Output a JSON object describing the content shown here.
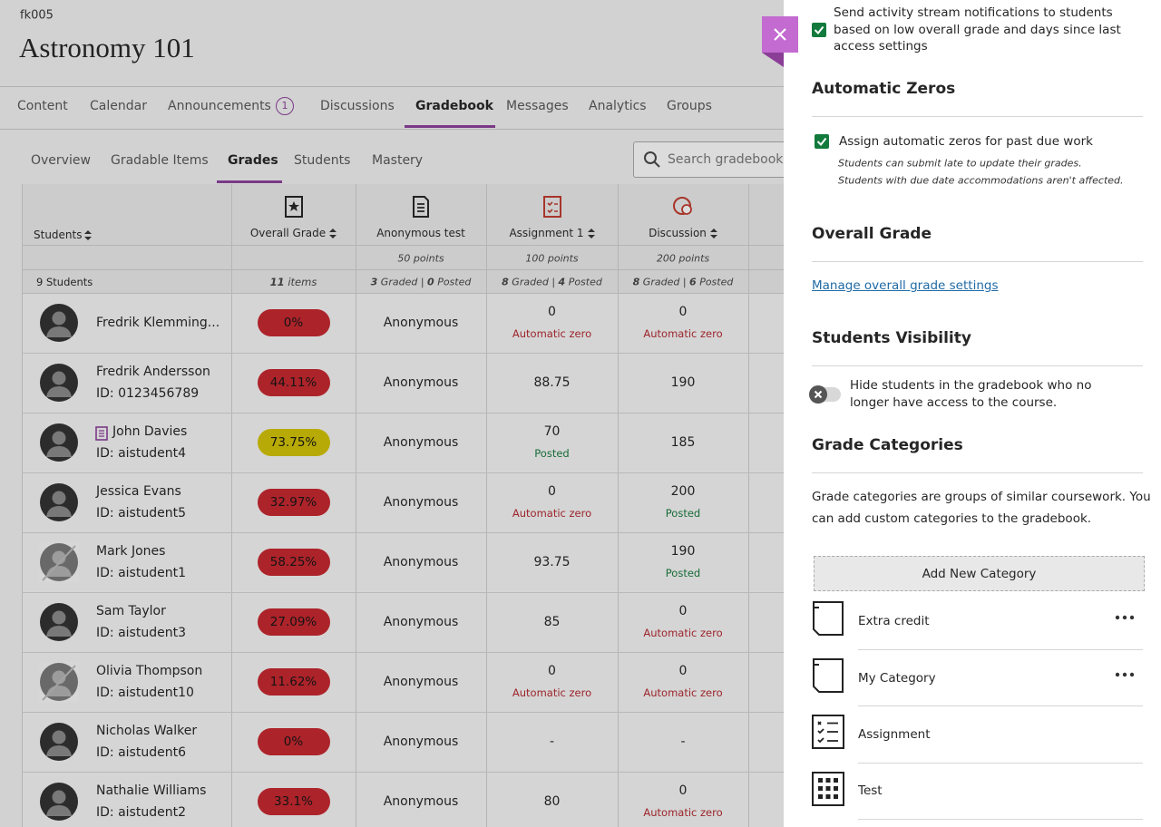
{
  "course": {
    "code": "fk005",
    "title": "Astronomy 101"
  },
  "nav": [
    {
      "label": "Content"
    },
    {
      "label": "Calendar"
    },
    {
      "label": "Announcements",
      "badge": "1"
    },
    {
      "label": "Discussions"
    },
    {
      "label": "Gradebook"
    },
    {
      "label": "Messages"
    },
    {
      "label": "Analytics"
    },
    {
      "label": "Groups"
    }
  ],
  "subnav": [
    {
      "label": "Overview"
    },
    {
      "label": "Gradable Items"
    },
    {
      "label": "Grades"
    },
    {
      "label": "Students"
    },
    {
      "label": "Mastery"
    }
  ],
  "search": {
    "placeholder": "Search gradebook"
  },
  "table": {
    "columns": [
      {
        "header": "Students"
      },
      {
        "header": "Overall Grade"
      },
      {
        "header": "Anonymous test",
        "points": "50 points"
      },
      {
        "header": "Assignment 1",
        "points": "100 points"
      },
      {
        "header": "Discussion",
        "points": "200 points"
      }
    ],
    "summary": {
      "students": "9 Students",
      "items_count": "11",
      "items_label": "items",
      "graded_label": "Graded",
      "posted_label": "Posted",
      "columns": [
        {
          "graded": "3",
          "posted": "0"
        },
        {
          "graded": "8",
          "posted": "4"
        },
        {
          "graded": "8",
          "posted": "6"
        }
      ]
    },
    "rows": [
      {
        "name": "Fredrik Klemming...",
        "grade": "0%",
        "grade_color": "#c8232b",
        "anon": "Anonymous",
        "assignment": "0",
        "assignment_status": "Automatic zero",
        "discussion": "0",
        "discussion_status": "Automatic zero"
      },
      {
        "name": "Fredrik Andersson",
        "id": "ID: 0123456789",
        "grade": "44.11%",
        "grade_color": "#c8232b",
        "anon": "Anonymous",
        "assignment": "88.75",
        "discussion": "190"
      },
      {
        "name": "John Davies",
        "id": "ID: aistudent4",
        "accommodation": true,
        "grade": "73.75%",
        "grade_color": "#d4c400",
        "anon": "Anonymous",
        "assignment": "70",
        "assignment_status": "Posted",
        "discussion": "185"
      },
      {
        "name": "Jessica Evans",
        "id": "ID: aistudent5",
        "grade": "32.97%",
        "grade_color": "#c8232b",
        "anon": "Anonymous",
        "assignment": "0",
        "assignment_status": "Automatic zero",
        "discussion": "200",
        "discussion_status": "Posted"
      },
      {
        "name": "Mark Jones",
        "id": "ID: aistudent1",
        "access_removed": true,
        "grade": "58.25%",
        "grade_color": "#c8232b",
        "anon": "Anonymous",
        "assignment": "93.75",
        "discussion": "190",
        "discussion_status": "Posted"
      },
      {
        "name": "Sam Taylor",
        "id": "ID: aistudent3",
        "grade": "27.09%",
        "grade_color": "#c8232b",
        "anon": "Anonymous",
        "assignment": "85",
        "discussion": "0",
        "discussion_status": "Automatic zero"
      },
      {
        "name": "Olivia Thompson",
        "id": "ID: aistudent10",
        "access_removed": true,
        "grade": "11.62%",
        "grade_color": "#c8232b",
        "anon": "Anonymous",
        "assignment": "0",
        "assignment_status": "Automatic zero",
        "discussion": "0",
        "discussion_status": "Automatic zero"
      },
      {
        "name": "Nicholas Walker",
        "id": "ID: aistudent6",
        "grade": "0%",
        "grade_color": "#c8232b",
        "anon": "Anonymous",
        "assignment": "-",
        "discussion": "-"
      },
      {
        "name": "Nathalie Williams",
        "id": "ID: aistudent2",
        "grade": "33.1%",
        "grade_color": "#c8232b",
        "anon": "Anonymous",
        "assignment": "80",
        "discussion": "0",
        "discussion_status": "Automatic zero"
      }
    ]
  },
  "panel": {
    "notify": {
      "line1": "Send activity stream notifications to students",
      "line2": "based on low overall grade and days since last",
      "line3": "access settings"
    },
    "automatic_zeros": {
      "title": "Automatic Zeros",
      "checkbox": "Assign automatic zeros for past due work",
      "note1": "Students can submit late to update their grades.",
      "note2": "Students with due date accommodations aren't affected."
    },
    "overall_grade": {
      "title": "Overall Grade",
      "link": "Manage overall grade settings"
    },
    "visibility": {
      "title": "Students Visibility",
      "line1": "Hide students in the gradebook who no",
      "line2": "longer have access to the course."
    },
    "categories": {
      "title": "Grade Categories",
      "line1": "Grade categories are groups of similar coursework. You",
      "line2": "can add custom categories to the gradebook.",
      "add": "Add New Category",
      "items": [
        {
          "label": "Extra credit"
        },
        {
          "label": "My Category"
        },
        {
          "label": "Assignment"
        },
        {
          "label": "Test"
        }
      ]
    }
  }
}
